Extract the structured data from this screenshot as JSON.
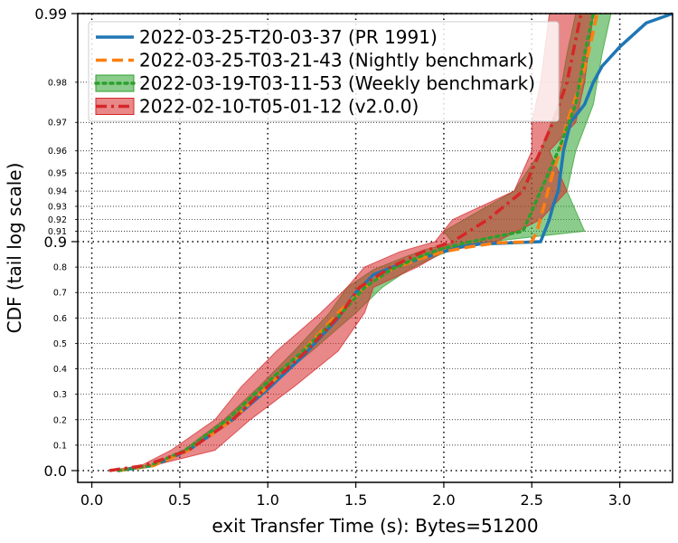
{
  "chart_data": {
    "type": "line",
    "title": "",
    "xlabel": "exit Transfer Time (s): Bytes=51200",
    "ylabel": "CDF (tail log scale)",
    "xlim": [
      -0.08,
      3.3
    ],
    "x_ticks": [
      0.0,
      0.5,
      1.0,
      1.5,
      2.0,
      2.5,
      3.0
    ],
    "x_tick_labels": [
      "0.0",
      "0.5",
      "1.0",
      "1.5",
      "2.0",
      "2.5",
      "3.0"
    ],
    "y_scale": "tail-log (linear to 0.9, logit-style above)",
    "y_major_ticks": [
      0.0,
      0.9,
      0.99
    ],
    "y_major_tick_labels": [
      "0.0",
      "0.9",
      "0.99"
    ],
    "y_minor_ticks": [
      0.1,
      0.2,
      0.3,
      0.4,
      0.5,
      0.6,
      0.7,
      0.8,
      0.91,
      0.92,
      0.93,
      0.94,
      0.95,
      0.96,
      0.97,
      0.98
    ],
    "y_minor_tick_labels": [
      "0.1",
      "0.2",
      "0.3",
      "0.4",
      "0.5",
      "0.6",
      "0.7",
      "0.8",
      "0.91",
      "0.92",
      "0.93",
      "0.94",
      "0.95",
      "0.96",
      "0.97",
      "0.98"
    ],
    "grid": true,
    "legend_position": "top-left",
    "series": [
      {
        "name": "2022-03-25-T20-03-37 (PR 1991)",
        "color": "#1f77b4",
        "style": "solid",
        "band": false,
        "x": [
          0.15,
          0.35,
          0.55,
          0.8,
          1.0,
          1.2,
          1.4,
          1.5,
          1.6,
          1.75,
          1.9,
          2.0,
          2.1,
          2.2,
          2.55,
          2.6,
          2.62,
          2.65,
          2.68,
          2.72,
          2.8,
          2.85,
          2.9,
          3.0,
          3.15,
          3.3
        ],
        "y": [
          0.0,
          0.02,
          0.08,
          0.2,
          0.32,
          0.45,
          0.6,
          0.7,
          0.77,
          0.81,
          0.84,
          0.86,
          0.88,
          0.89,
          0.9,
          0.92,
          0.93,
          0.94,
          0.96,
          0.97,
          0.975,
          0.98,
          0.983,
          0.986,
          0.989,
          0.99
        ]
      },
      {
        "name": "2022-03-25-T03-21-43 (Nightly benchmark)",
        "color": "#ff7f0e",
        "style": "dashed",
        "band": false,
        "x": [
          0.15,
          0.35,
          0.55,
          0.8,
          1.0,
          1.2,
          1.4,
          1.55,
          1.7,
          1.85,
          2.0,
          2.15,
          2.3,
          2.5,
          2.53,
          2.58,
          2.62,
          2.66,
          2.7,
          2.78,
          2.82,
          2.85,
          2.87
        ],
        "y": [
          0.0,
          0.02,
          0.08,
          0.2,
          0.33,
          0.47,
          0.62,
          0.72,
          0.79,
          0.83,
          0.86,
          0.88,
          0.895,
          0.9,
          0.91,
          0.935,
          0.95,
          0.96,
          0.97,
          0.98,
          0.985,
          0.988,
          0.99
        ]
      },
      {
        "name": "2022-03-19-T03-11-53 (Weekly benchmark)",
        "color": "#2ca02c",
        "style": "dotted",
        "band": true,
        "band_x": [
          [
            0.15,
            0.15
          ],
          [
            0.35,
            0.33
          ],
          [
            0.55,
            0.52
          ],
          [
            0.8,
            0.75
          ],
          [
            1.0,
            0.95
          ],
          [
            1.25,
            1.15
          ],
          [
            1.5,
            1.35
          ],
          [
            1.65,
            1.45
          ],
          [
            1.8,
            1.6
          ],
          [
            1.95,
            1.78
          ],
          [
            2.05,
            1.9
          ],
          [
            2.2,
            2.05
          ],
          [
            2.8,
            2.0
          ],
          [
            2.7,
            2.4
          ],
          [
            2.75,
            2.55
          ],
          [
            2.85,
            2.65
          ],
          [
            2.9,
            2.7
          ],
          [
            2.95,
            2.75
          ]
        ],
        "x": [
          0.15,
          0.33,
          0.53,
          0.77,
          0.97,
          1.2,
          1.42,
          1.55,
          1.7,
          1.86,
          1.98,
          2.12,
          2.45,
          2.55,
          2.65,
          2.75,
          2.8,
          2.85
        ],
        "y": [
          0.0,
          0.02,
          0.08,
          0.2,
          0.33,
          0.47,
          0.62,
          0.72,
          0.79,
          0.84,
          0.87,
          0.895,
          0.91,
          0.94,
          0.96,
          0.975,
          0.985,
          0.99
        ]
      },
      {
        "name": "2022-02-10-T05-01-12 (v2.0.0)",
        "color": "#d62728",
        "style": "dashdot",
        "band": true,
        "band_x": [
          [
            0.1,
            0.1
          ],
          [
            0.35,
            0.28
          ],
          [
            0.7,
            0.45
          ],
          [
            0.9,
            0.7
          ],
          [
            1.15,
            0.85
          ],
          [
            1.4,
            1.05
          ],
          [
            1.55,
            1.3
          ],
          [
            1.6,
            1.45
          ],
          [
            1.85,
            1.55
          ],
          [
            2.0,
            1.75
          ],
          [
            2.3,
            1.95
          ],
          [
            2.55,
            2.05
          ],
          [
            2.7,
            2.4
          ],
          [
            2.6,
            2.5
          ],
          [
            2.75,
            2.5
          ],
          [
            2.8,
            2.55
          ],
          [
            2.85,
            2.6
          ]
        ],
        "x": [
          0.1,
          0.3,
          0.55,
          0.8,
          1.0,
          1.22,
          1.42,
          1.52,
          1.7,
          1.88,
          2.05,
          2.25,
          2.45,
          2.55,
          2.62,
          2.7,
          2.78
        ],
        "y": [
          0.0,
          0.02,
          0.08,
          0.2,
          0.33,
          0.47,
          0.62,
          0.72,
          0.8,
          0.86,
          0.9,
          0.92,
          0.94,
          0.96,
          0.97,
          0.98,
          0.99
        ]
      }
    ]
  }
}
